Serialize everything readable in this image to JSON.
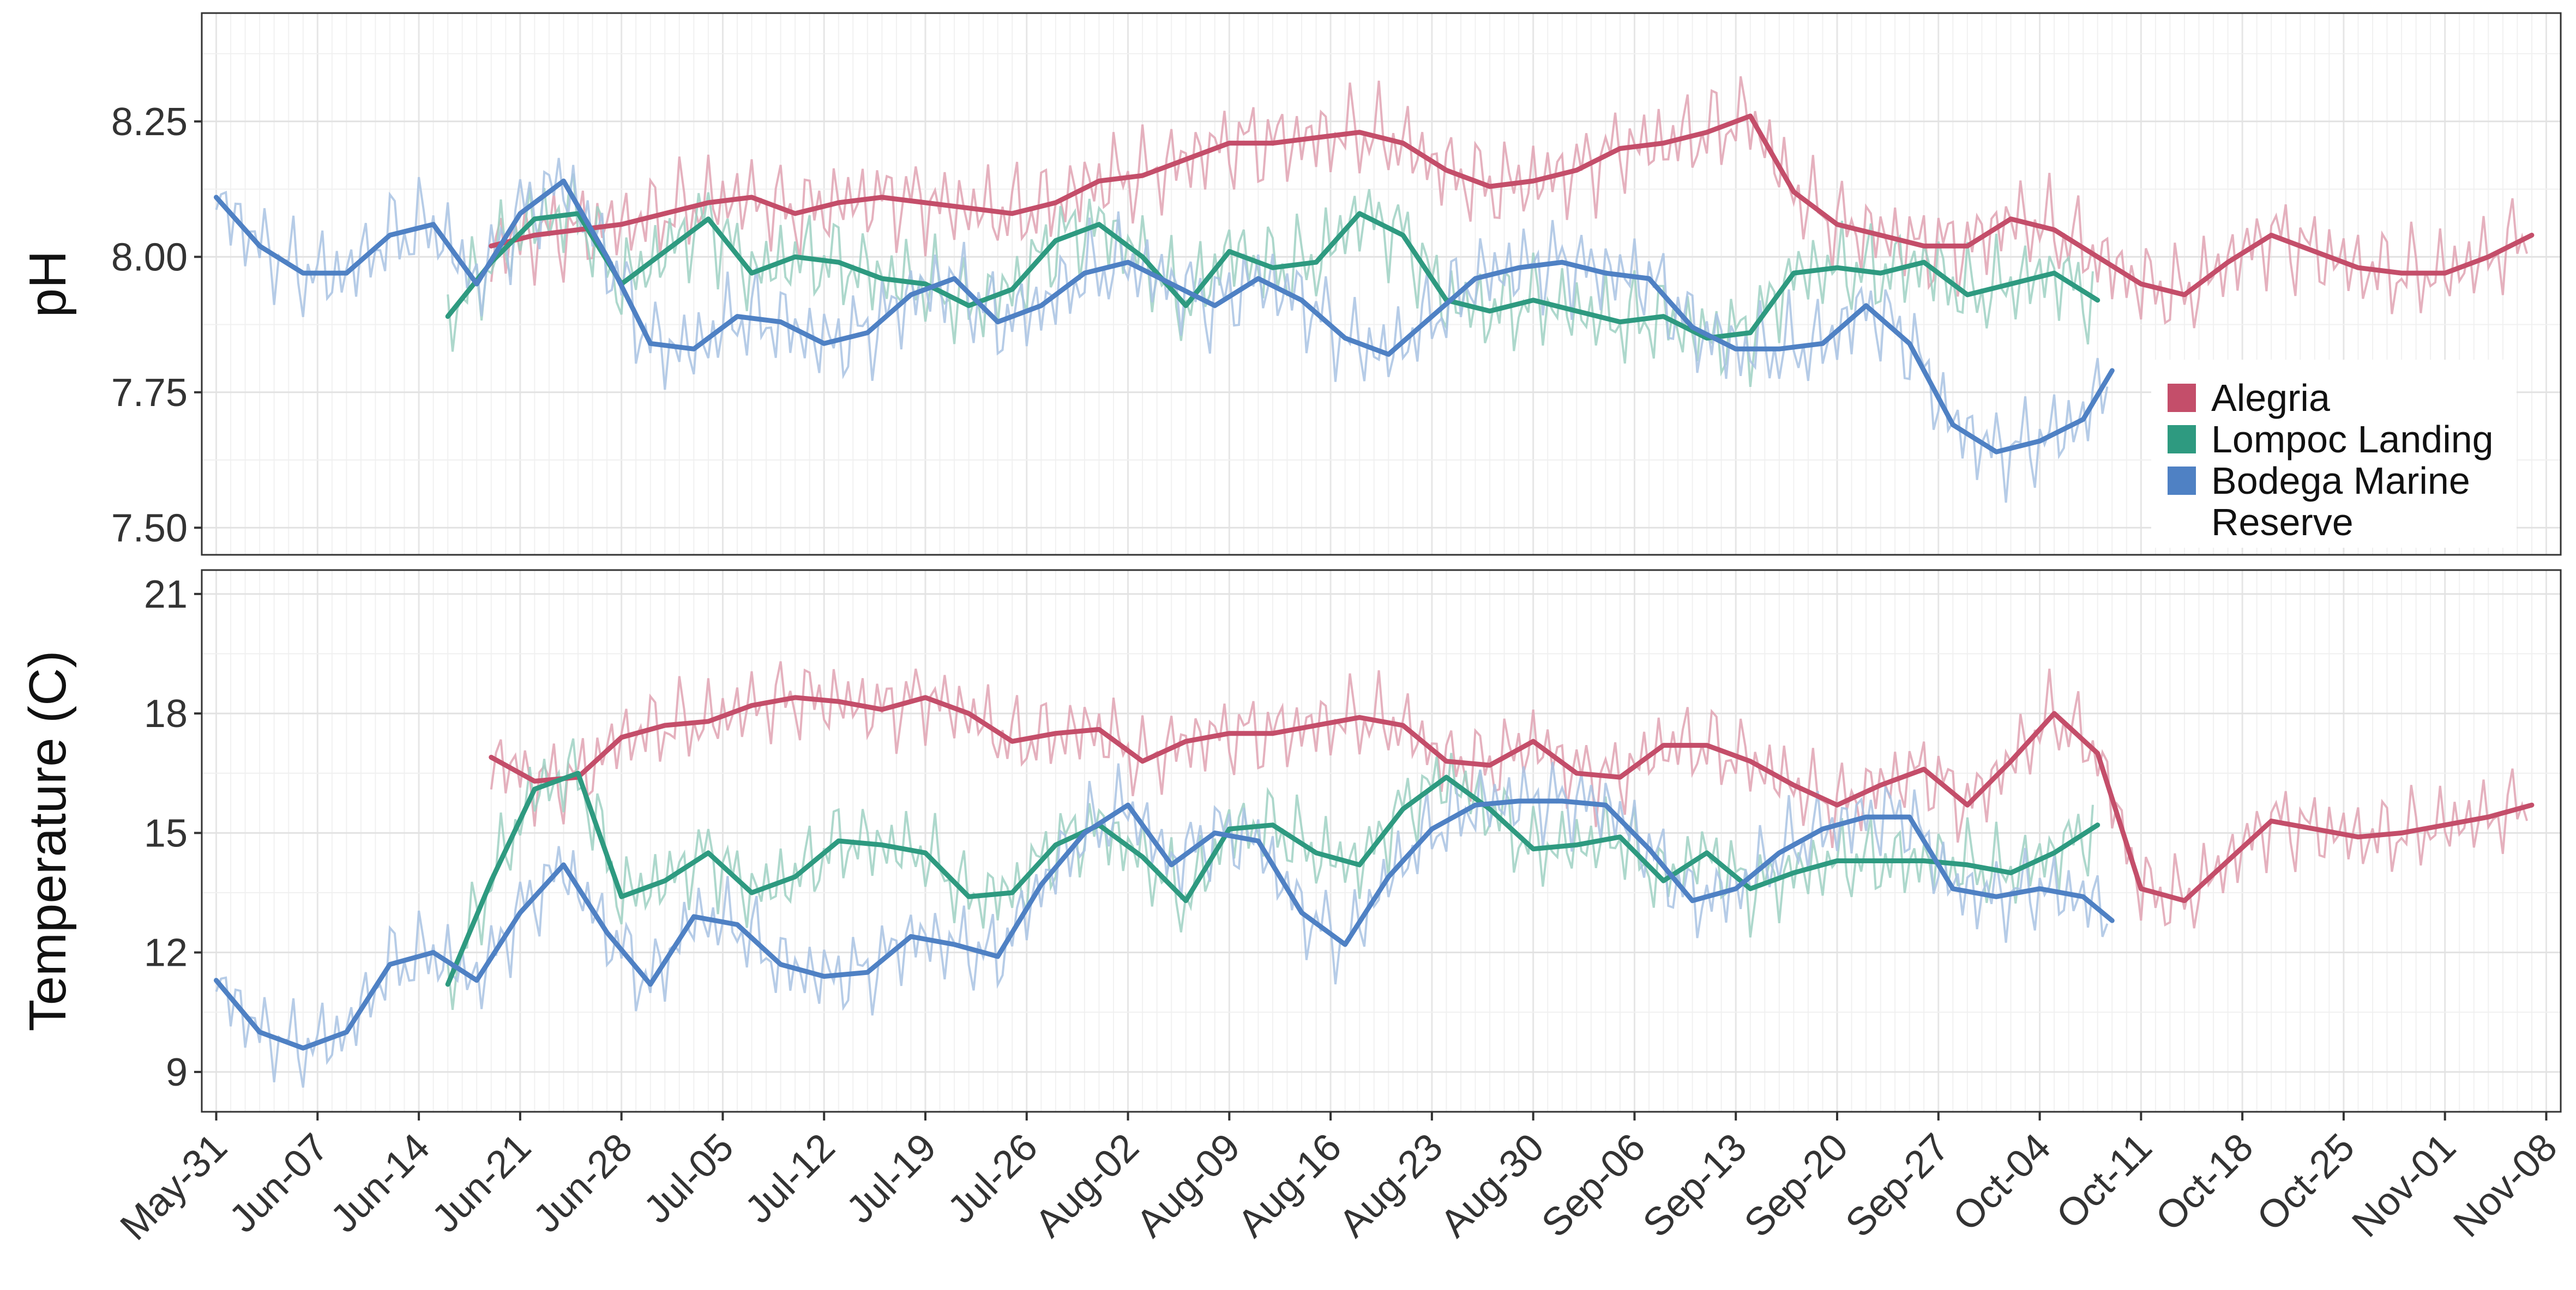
{
  "chart_data": [
    {
      "type": "line",
      "panel": "top",
      "ylabel": "pH",
      "yticks": [
        "7.50",
        "7.75",
        "8.00",
        "8.25"
      ],
      "ylim": [
        7.45,
        8.45
      ],
      "xticks": [
        "May-31",
        "Jun-07",
        "Jun-14",
        "Jun-21",
        "Jun-28",
        "Jul-05",
        "Jul-12",
        "Jul-19",
        "Jul-26",
        "Aug-02",
        "Aug-09",
        "Aug-16",
        "Aug-23",
        "Aug-30",
        "Sep-06",
        "Sep-13",
        "Sep-20",
        "Sep-27",
        "Oct-04",
        "Oct-11",
        "Oct-18",
        "Oct-25",
        "Nov-01",
        "Nov-08"
      ],
      "grid": true,
      "legend_position": "bottom-right",
      "series": [
        {
          "name": "Alegria",
          "color": "#c44e6a",
          "raw_color": "#e0a3b3",
          "x": [
            "Jun-19",
            "Jun-22",
            "Jun-25",
            "Jun-28",
            "Jul-01",
            "Jul-04",
            "Jul-07",
            "Jul-10",
            "Jul-13",
            "Jul-16",
            "Jul-19",
            "Jul-22",
            "Jul-25",
            "Jul-28",
            "Jul-31",
            "Aug-03",
            "Aug-06",
            "Aug-09",
            "Aug-12",
            "Aug-15",
            "Aug-18",
            "Aug-21",
            "Aug-24",
            "Aug-27",
            "Aug-30",
            "Sep-02",
            "Sep-05",
            "Sep-08",
            "Sep-11",
            "Sep-14",
            "Sep-17",
            "Sep-20",
            "Sep-23",
            "Sep-26",
            "Sep-29",
            "Oct-02",
            "Oct-05",
            "Oct-08",
            "Oct-11",
            "Oct-14",
            "Oct-17",
            "Oct-20",
            "Oct-23",
            "Oct-26",
            "Oct-29",
            "Nov-01",
            "Nov-04",
            "Nov-07"
          ],
          "values": [
            8.02,
            8.04,
            8.05,
            8.06,
            8.08,
            8.1,
            8.11,
            8.08,
            8.1,
            8.11,
            8.1,
            8.09,
            8.08,
            8.1,
            8.14,
            8.15,
            8.18,
            8.21,
            8.21,
            8.22,
            8.23,
            8.21,
            8.16,
            8.13,
            8.14,
            8.16,
            8.2,
            8.21,
            8.23,
            8.26,
            8.12,
            8.06,
            8.04,
            8.02,
            8.02,
            8.07,
            8.05,
            8.0,
            7.95,
            7.93,
            7.99,
            8.04,
            8.01,
            7.98,
            7.97,
            7.97,
            8.0,
            8.04
          ]
        },
        {
          "name": "Lompoc Landing",
          "color": "#2e9a80",
          "raw_color": "#9fd1c3",
          "x": [
            "Jun-16",
            "Jun-19",
            "Jun-22",
            "Jun-25",
            "Jun-28",
            "Jul-01",
            "Jul-04",
            "Jul-07",
            "Jul-10",
            "Jul-13",
            "Jul-16",
            "Jul-19",
            "Jul-22",
            "Jul-25",
            "Jul-28",
            "Jul-31",
            "Aug-03",
            "Aug-06",
            "Aug-09",
            "Aug-12",
            "Aug-15",
            "Aug-18",
            "Aug-21",
            "Aug-24",
            "Aug-27",
            "Aug-30",
            "Sep-02",
            "Sep-05",
            "Sep-08",
            "Sep-11",
            "Sep-14",
            "Sep-17",
            "Sep-20",
            "Sep-23",
            "Sep-26",
            "Sep-29",
            "Oct-02",
            "Oct-05",
            "Oct-08"
          ],
          "values": [
            7.89,
            7.99,
            8.07,
            8.08,
            7.95,
            8.01,
            8.07,
            7.97,
            8.0,
            7.99,
            7.96,
            7.95,
            7.91,
            7.94,
            8.03,
            8.06,
            8.0,
            7.91,
            8.01,
            7.98,
            7.99,
            8.08,
            8.04,
            7.92,
            7.9,
            7.92,
            7.9,
            7.88,
            7.89,
            7.85,
            7.86,
            7.97,
            7.98,
            7.97,
            7.99,
            7.93,
            7.95,
            7.97,
            7.92
          ]
        },
        {
          "name": "Bodega Marine Reserve",
          "color": "#4f81c4",
          "raw_color": "#a9c3e3",
          "x": [
            "May-31",
            "Jun-03",
            "Jun-06",
            "Jun-09",
            "Jun-12",
            "Jun-15",
            "Jun-18",
            "Jun-21",
            "Jun-24",
            "Jun-27",
            "Jun-30",
            "Jul-03",
            "Jul-06",
            "Jul-09",
            "Jul-12",
            "Jul-15",
            "Jul-18",
            "Jul-21",
            "Jul-24",
            "Jul-27",
            "Jul-30",
            "Aug-02",
            "Aug-05",
            "Aug-08",
            "Aug-11",
            "Aug-14",
            "Aug-17",
            "Aug-20",
            "Aug-23",
            "Aug-26",
            "Aug-29",
            "Sep-01",
            "Sep-04",
            "Sep-07",
            "Sep-10",
            "Sep-13",
            "Sep-16",
            "Sep-19",
            "Sep-22",
            "Sep-25",
            "Sep-28",
            "Oct-01",
            "Oct-04",
            "Oct-07",
            "Oct-09"
          ],
          "values": [
            8.11,
            8.02,
            7.97,
            7.97,
            8.04,
            8.06,
            7.95,
            8.08,
            8.14,
            8.0,
            7.84,
            7.83,
            7.89,
            7.88,
            7.84,
            7.86,
            7.93,
            7.96,
            7.88,
            7.91,
            7.97,
            7.99,
            7.95,
            7.91,
            7.96,
            7.92,
            7.85,
            7.82,
            7.89,
            7.96,
            7.98,
            7.99,
            7.97,
            7.96,
            7.87,
            7.83,
            7.83,
            7.84,
            7.91,
            7.84,
            7.69,
            7.64,
            7.66,
            7.7,
            7.79
          ]
        }
      ]
    },
    {
      "type": "line",
      "panel": "bottom",
      "ylabel": "Temperature (C)",
      "yticks": [
        "9",
        "12",
        "15",
        "18",
        "21"
      ],
      "ylim": [
        8.0,
        21.6
      ],
      "xticks": [
        "May-31",
        "Jun-07",
        "Jun-14",
        "Jun-21",
        "Jun-28",
        "Jul-05",
        "Jul-12",
        "Jul-19",
        "Jul-26",
        "Aug-02",
        "Aug-09",
        "Aug-16",
        "Aug-23",
        "Aug-30",
        "Sep-06",
        "Sep-13",
        "Sep-20",
        "Sep-27",
        "Oct-04",
        "Oct-11",
        "Oct-18",
        "Oct-25",
        "Nov-01",
        "Nov-08"
      ],
      "grid": true,
      "series": [
        {
          "name": "Alegria",
          "color": "#c44e6a",
          "raw_color": "#e0a3b3",
          "x": [
            "Jun-19",
            "Jun-22",
            "Jun-25",
            "Jun-28",
            "Jul-01",
            "Jul-04",
            "Jul-07",
            "Jul-10",
            "Jul-13",
            "Jul-16",
            "Jul-19",
            "Jul-22",
            "Jul-25",
            "Jul-28",
            "Jul-31",
            "Aug-03",
            "Aug-06",
            "Aug-09",
            "Aug-12",
            "Aug-15",
            "Aug-18",
            "Aug-21",
            "Aug-24",
            "Aug-27",
            "Aug-30",
            "Sep-02",
            "Sep-05",
            "Sep-08",
            "Sep-11",
            "Sep-14",
            "Sep-17",
            "Sep-20",
            "Sep-23",
            "Sep-26",
            "Sep-29",
            "Oct-02",
            "Oct-05",
            "Oct-08",
            "Oct-11",
            "Oct-14",
            "Oct-17",
            "Oct-20",
            "Oct-23",
            "Oct-26",
            "Oct-29",
            "Nov-01",
            "Nov-04",
            "Nov-07"
          ],
          "values": [
            16.9,
            16.3,
            16.4,
            17.4,
            17.7,
            17.8,
            18.2,
            18.4,
            18.3,
            18.1,
            18.4,
            18.0,
            17.3,
            17.5,
            17.6,
            16.8,
            17.3,
            17.5,
            17.5,
            17.7,
            17.9,
            17.7,
            16.8,
            16.7,
            17.3,
            16.5,
            16.4,
            17.2,
            17.2,
            16.8,
            16.2,
            15.7,
            16.2,
            16.6,
            15.7,
            16.8,
            18.0,
            17.0,
            13.6,
            13.3,
            14.3,
            15.3,
            15.1,
            14.9,
            15.0,
            15.2,
            15.4,
            15.7
          ]
        },
        {
          "name": "Lompoc Landing",
          "color": "#2e9a80",
          "raw_color": "#9fd1c3",
          "x": [
            "Jun-16",
            "Jun-19",
            "Jun-22",
            "Jun-25",
            "Jun-28",
            "Jul-01",
            "Jul-04",
            "Jul-07",
            "Jul-10",
            "Jul-13",
            "Jul-16",
            "Jul-19",
            "Jul-22",
            "Jul-25",
            "Jul-28",
            "Jul-31",
            "Aug-03",
            "Aug-06",
            "Aug-09",
            "Aug-12",
            "Aug-15",
            "Aug-18",
            "Aug-21",
            "Aug-24",
            "Aug-27",
            "Aug-30",
            "Sep-02",
            "Sep-05",
            "Sep-08",
            "Sep-11",
            "Sep-14",
            "Sep-17",
            "Sep-20",
            "Sep-23",
            "Sep-26",
            "Sep-29",
            "Oct-02",
            "Oct-05",
            "Oct-08"
          ],
          "values": [
            11.2,
            13.8,
            16.1,
            16.5,
            13.4,
            13.8,
            14.5,
            13.5,
            13.9,
            14.8,
            14.7,
            14.5,
            13.4,
            13.5,
            14.7,
            15.2,
            14.4,
            13.3,
            15.1,
            15.2,
            14.5,
            14.2,
            15.6,
            16.4,
            15.6,
            14.6,
            14.7,
            14.9,
            13.8,
            14.5,
            13.6,
            14.0,
            14.3,
            14.3,
            14.3,
            14.2,
            14.0,
            14.5,
            15.2
          ]
        },
        {
          "name": "Bodega Marine Reserve",
          "color": "#4f81c4",
          "raw_color": "#a9c3e3",
          "x": [
            "May-31",
            "Jun-03",
            "Jun-06",
            "Jun-09",
            "Jun-12",
            "Jun-15",
            "Jun-18",
            "Jun-21",
            "Jun-24",
            "Jun-27",
            "Jun-30",
            "Jul-03",
            "Jul-06",
            "Jul-09",
            "Jul-12",
            "Jul-15",
            "Jul-18",
            "Jul-21",
            "Jul-24",
            "Jul-27",
            "Jul-30",
            "Aug-02",
            "Aug-05",
            "Aug-08",
            "Aug-11",
            "Aug-14",
            "Aug-17",
            "Aug-20",
            "Aug-23",
            "Aug-26",
            "Aug-29",
            "Sep-01",
            "Sep-04",
            "Sep-07",
            "Sep-10",
            "Sep-13",
            "Sep-16",
            "Sep-19",
            "Sep-22",
            "Sep-25",
            "Sep-28",
            "Oct-01",
            "Oct-04",
            "Oct-07",
            "Oct-09"
          ],
          "values": [
            11.3,
            10.0,
            9.6,
            10.0,
            11.7,
            12.0,
            11.3,
            13.0,
            14.2,
            12.5,
            11.2,
            12.9,
            12.7,
            11.7,
            11.4,
            11.5,
            12.4,
            12.2,
            11.9,
            13.7,
            15.0,
            15.7,
            14.2,
            15.0,
            14.8,
            13.0,
            12.2,
            13.9,
            15.1,
            15.7,
            15.8,
            15.8,
            15.7,
            14.6,
            13.3,
            13.6,
            14.5,
            15.1,
            15.4,
            15.4,
            13.6,
            13.4,
            13.6,
            13.4,
            12.8
          ]
        }
      ]
    }
  ],
  "legend": {
    "items": [
      {
        "label": "Alegria",
        "color": "#c44e6a"
      },
      {
        "label": "Lompoc Landing",
        "color": "#2e9a80"
      },
      {
        "label": "Bodega Marine",
        "label_line2": "Reserve",
        "color": "#4f81c4"
      }
    ]
  }
}
